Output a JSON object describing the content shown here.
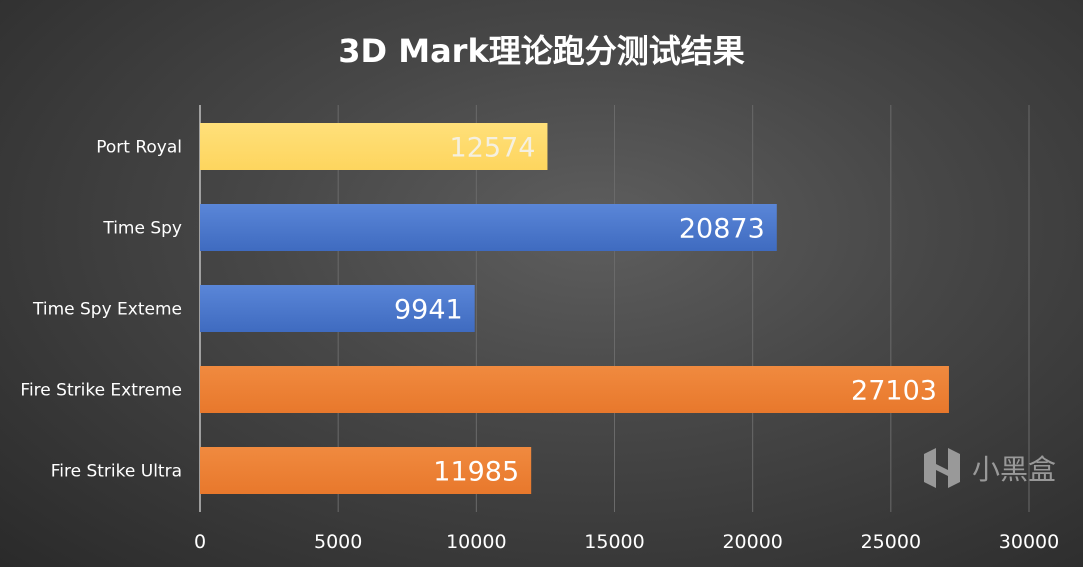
{
  "chart_data": {
    "type": "bar",
    "orientation": "horizontal",
    "title": "3D Mark理论跑分测试结果",
    "categories": [
      "Port Royal",
      "Time Spy",
      "Time Spy Exteme",
      "Fire Strike Extreme",
      "Fire Strike Ultra"
    ],
    "values": [
      12574,
      20873,
      9941,
      27103,
      11985
    ],
    "colors": [
      "#ffd966",
      "#4472c4",
      "#4472c4",
      "#ed7d31",
      "#ed7d31"
    ],
    "xlim": [
      0,
      30000
    ],
    "xticks": [
      0,
      5000,
      10000,
      15000,
      20000,
      25000,
      30000
    ],
    "grid": true,
    "xlabel": "",
    "ylabel": ""
  },
  "watermark": "小黑盒"
}
